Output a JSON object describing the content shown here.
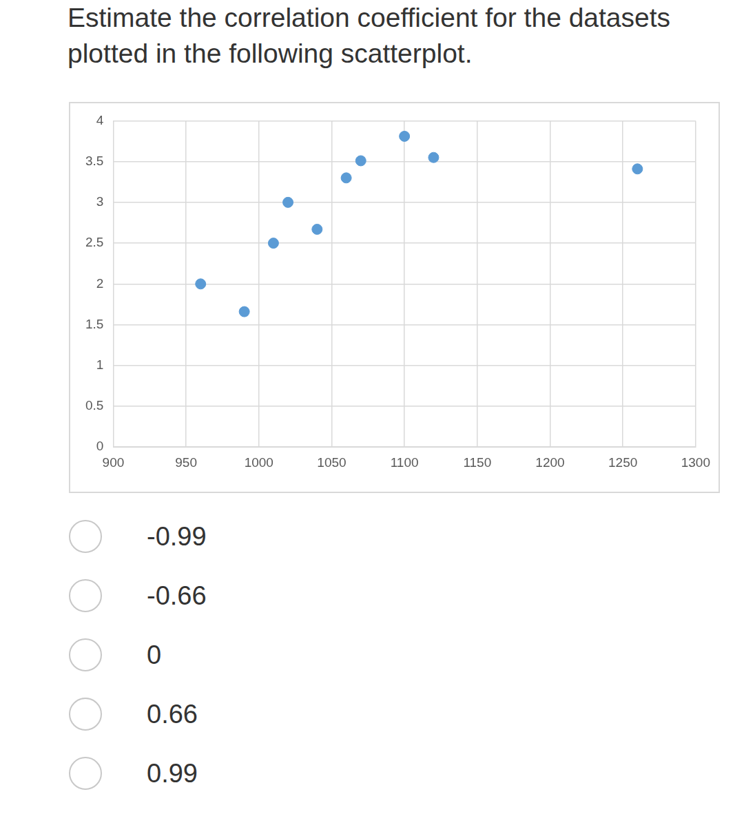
{
  "question": "Estimate the correlation coefficient for the datasets plotted in the following scatterplot.",
  "chart_data": {
    "type": "scatter",
    "x": [
      960,
      990,
      1010,
      1020,
      1040,
      1060,
      1070,
      1100,
      1120,
      1260
    ],
    "values": [
      2.0,
      1.66,
      2.5,
      3.0,
      2.67,
      3.3,
      3.51,
      3.81,
      3.55,
      3.41
    ],
    "color": "#5b9bd5",
    "xlim": [
      900,
      1300
    ],
    "xticks": [
      900,
      950,
      1000,
      1050,
      1100,
      1150,
      1200,
      1250,
      1300
    ],
    "ylim": [
      0,
      4
    ],
    "yticks": [
      0,
      0.5,
      1,
      1.5,
      2,
      2.5,
      3,
      3.5,
      4
    ],
    "grid": true,
    "marker": "circle"
  },
  "options": [
    -0.99,
    -0.66,
    0,
    0.66,
    0.99
  ]
}
